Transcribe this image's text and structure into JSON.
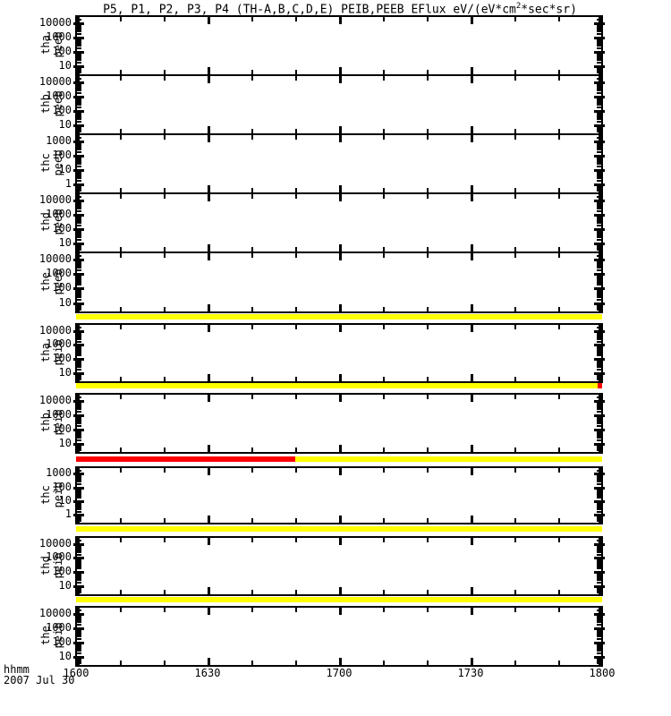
{
  "title": {
    "prefix": "P5, P1, P2, P3, P4 (TH-A,B,C,D,E) PEIB,PEEB EFlux eV/(eV*cm",
    "sup": "2",
    "suffix": "*sec*sr)"
  },
  "x_axis": {
    "unit_label": "hhmm",
    "date_label": "2007 Jul 30",
    "tick_labels": [
      "1600",
      "1630",
      "1700",
      "1730",
      "1800"
    ]
  },
  "colors": {
    "bar_yellow": "#ffff00",
    "bar_red": "#ff0000",
    "axis": "#000000",
    "background": "#ffffff"
  },
  "chart_data": {
    "type": "line",
    "description": "Ten stacked empty log-scale time-series panels (no flux traces plotted); horizontal status bars drawn between the lower panels",
    "x_range_hhmm": [
      "1600",
      "1800"
    ],
    "x_tick_labels": [
      "1600",
      "1630",
      "1700",
      "1730",
      "1800"
    ],
    "x_minor_tick_step_minutes": 10,
    "date": "2007 Jul 30",
    "grid": false,
    "panels": [
      {
        "label": "tha peeb",
        "y_tick_labels": [
          "10000",
          "1000",
          "100",
          "10"
        ],
        "y_scale": "log",
        "approx_ylim": [
          3,
          25000
        ],
        "series": []
      },
      {
        "label": "thb peeb",
        "y_tick_labels": [
          "10000",
          "1000",
          "100",
          "10"
        ],
        "y_scale": "log",
        "approx_ylim": [
          3,
          25000
        ],
        "series": []
      },
      {
        "label": "thc peeb",
        "y_tick_labels": [
          "1000",
          "100",
          "10",
          "1"
        ],
        "y_scale": "log",
        "approx_ylim": [
          0.3,
          2500
        ],
        "series": []
      },
      {
        "label": "thd peeb",
        "y_tick_labels": [
          "10000",
          "1000",
          "100",
          "10"
        ],
        "y_scale": "log",
        "approx_ylim": [
          3,
          25000
        ],
        "series": []
      },
      {
        "label": "the peeb",
        "y_tick_labels": [
          "10000",
          "1000",
          "100",
          "10"
        ],
        "y_scale": "log",
        "approx_ylim": [
          3,
          25000
        ],
        "series": []
      },
      {
        "label": "tha peib",
        "y_tick_labels": [
          "10000",
          "1000",
          "100",
          "10"
        ],
        "y_scale": "log",
        "approx_ylim": [
          3,
          25000
        ],
        "series": []
      },
      {
        "label": "thb peib",
        "y_tick_labels": [
          "10000",
          "1000",
          "100",
          "10"
        ],
        "y_scale": "log",
        "approx_ylim": [
          3,
          25000
        ],
        "series": []
      },
      {
        "label": "thc peib",
        "y_tick_labels": [
          "1000",
          "100",
          "10",
          "1"
        ],
        "y_scale": "log",
        "approx_ylim": [
          0.3,
          2500
        ],
        "series": []
      },
      {
        "label": "thd peib",
        "y_tick_labels": [
          "10000",
          "1000",
          "100",
          "10"
        ],
        "y_scale": "log",
        "approx_ylim": [
          3,
          25000
        ],
        "series": []
      },
      {
        "label": "the peib",
        "y_tick_labels": [
          "10000",
          "1000",
          "100",
          "10"
        ],
        "y_scale": "log",
        "approx_ylim": [
          3,
          25000
        ],
        "series": []
      }
    ],
    "status_bars": [
      {
        "below_panel": "the peeb",
        "segments": [
          {
            "color": "yellow",
            "start_hhmm": "1600",
            "end_hhmm": "1800"
          }
        ]
      },
      {
        "below_panel": "tha peib",
        "segments": [
          {
            "color": "yellow",
            "start_hhmm": "1600",
            "end_hhmm": "1759"
          },
          {
            "color": "red",
            "start_hhmm": "1759",
            "end_hhmm": "1800"
          }
        ]
      },
      {
        "below_panel": "thb peib",
        "segments": [
          {
            "color": "red",
            "start_hhmm": "1600",
            "end_hhmm": "1650"
          },
          {
            "color": "yellow",
            "start_hhmm": "1650",
            "end_hhmm": "1800"
          }
        ]
      },
      {
        "below_panel": "thc peib",
        "segments": [
          {
            "color": "yellow",
            "start_hhmm": "1600",
            "end_hhmm": "1800"
          }
        ]
      },
      {
        "below_panel": "thd peib",
        "segments": [
          {
            "color": "yellow",
            "start_hhmm": "1600",
            "end_hhmm": "1800"
          }
        ]
      }
    ]
  }
}
